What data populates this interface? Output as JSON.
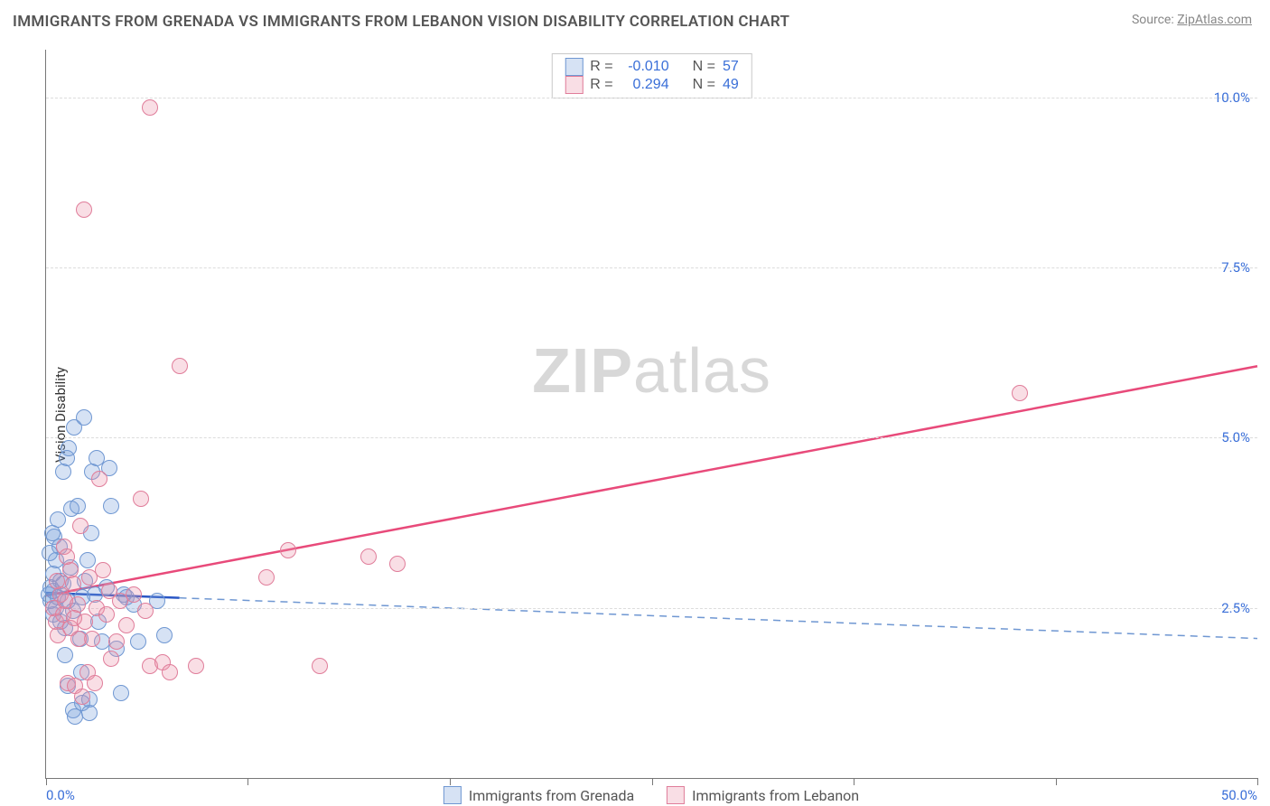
{
  "header": {
    "title": "IMMIGRANTS FROM GRENADA VS IMMIGRANTS FROM LEBANON VISION DISABILITY CORRELATION CHART",
    "source_prefix": "Source: ",
    "source_name": "ZipAtlas.com"
  },
  "watermark": {
    "zip": "ZIP",
    "atlas": "atlas"
  },
  "chart": {
    "type": "scatter",
    "ylabel": "Vision Disability",
    "xlim": [
      0,
      50
    ],
    "ylim": [
      0,
      10.7
    ],
    "xticks": [
      0,
      8.33,
      16.67,
      25,
      33.33,
      41.67,
      50
    ],
    "xtick_labels": {
      "0": "0.0%",
      "50": "50.0%"
    },
    "yticks": [
      2.5,
      5.0,
      7.5,
      10.0
    ],
    "ytick_labels": [
      "2.5%",
      "5.0%",
      "7.5%",
      "10.0%"
    ],
    "grid_dash_color": "#dcdcdc",
    "axis_color": "#777777",
    "tick_label_color": "#3a6fd8",
    "marker_radius": 9,
    "marker_border": 1.5,
    "series": [
      {
        "key": "grenada",
        "label": "Immigrants from Grenada",
        "fill": "rgba(120,160,220,0.30)",
        "stroke": "#6f97d2",
        "line_color": "#2a57c5",
        "line_dash_color": "#6f97d2",
        "line_solid_to_x": 5.5,
        "regression": {
          "x0": 0,
          "y0": 2.72,
          "x1": 50,
          "y1": 2.05
        },
        "legend_stats": {
          "R": "-0.010",
          "N": "57"
        },
        "points": [
          [
            0.1,
            2.7
          ],
          [
            0.2,
            2.6
          ],
          [
            0.2,
            2.8
          ],
          [
            0.3,
            2.75
          ],
          [
            0.3,
            3.0
          ],
          [
            0.3,
            2.4
          ],
          [
            0.4,
            2.5
          ],
          [
            0.4,
            3.2
          ],
          [
            0.5,
            2.65
          ],
          [
            0.5,
            3.8
          ],
          [
            0.6,
            2.3
          ],
          [
            0.6,
            2.9
          ],
          [
            0.7,
            2.85
          ],
          [
            0.7,
            4.5
          ],
          [
            0.8,
            2.2
          ],
          [
            0.8,
            1.8
          ],
          [
            0.85,
            4.7
          ],
          [
            0.9,
            2.6
          ],
          [
            0.9,
            1.35
          ],
          [
            0.95,
            4.85
          ],
          [
            1.0,
            3.1
          ],
          [
            1.05,
            3.95
          ],
          [
            1.1,
            2.45
          ],
          [
            1.1,
            1.0
          ],
          [
            1.15,
            5.15
          ],
          [
            1.2,
            0.9
          ],
          [
            1.3,
            4.0
          ],
          [
            1.4,
            2.05
          ],
          [
            1.45,
            1.55
          ],
          [
            1.5,
            2.65
          ],
          [
            1.5,
            1.1
          ],
          [
            1.55,
            5.3
          ],
          [
            1.6,
            2.9
          ],
          [
            1.7,
            3.2
          ],
          [
            1.8,
            1.15
          ],
          [
            1.8,
            0.95
          ],
          [
            1.85,
            3.6
          ],
          [
            1.9,
            4.5
          ],
          [
            2.0,
            2.7
          ],
          [
            2.1,
            4.7
          ],
          [
            2.15,
            2.3
          ],
          [
            2.3,
            2.0
          ],
          [
            2.5,
            2.8
          ],
          [
            2.6,
            4.55
          ],
          [
            2.7,
            4.0
          ],
          [
            2.9,
            1.9
          ],
          [
            3.1,
            1.25
          ],
          [
            3.2,
            2.7
          ],
          [
            3.3,
            2.65
          ],
          [
            3.6,
            2.55
          ],
          [
            3.8,
            2.0
          ],
          [
            4.6,
            2.6
          ],
          [
            4.9,
            2.1
          ],
          [
            0.35,
            3.55
          ],
          [
            0.55,
            3.4
          ],
          [
            0.15,
            3.3
          ],
          [
            0.25,
            3.6
          ]
        ]
      },
      {
        "key": "lebanon",
        "label": "Immigrants from Lebanon",
        "fill": "rgba(235,145,170,0.30)",
        "stroke": "#e07d9a",
        "line_color": "#e84a7a",
        "line_dash_color": "#e07d9a",
        "line_solid_to_x": 50,
        "regression": {
          "x0": 0,
          "y0": 2.68,
          "x1": 50,
          "y1": 6.05
        },
        "legend_stats": {
          "R": "0.294",
          "N": "49"
        },
        "points": [
          [
            0.3,
            2.5
          ],
          [
            0.4,
            2.3
          ],
          [
            0.5,
            2.1
          ],
          [
            0.6,
            2.7
          ],
          [
            0.7,
            2.4
          ],
          [
            0.75,
            3.4
          ],
          [
            0.8,
            2.6
          ],
          [
            0.9,
            1.4
          ],
          [
            1.0,
            2.2
          ],
          [
            1.0,
            3.05
          ],
          [
            1.1,
            2.85
          ],
          [
            1.2,
            1.35
          ],
          [
            1.3,
            2.55
          ],
          [
            1.4,
            3.7
          ],
          [
            1.5,
            1.2
          ],
          [
            1.55,
            8.35
          ],
          [
            1.6,
            2.3
          ],
          [
            1.7,
            1.55
          ],
          [
            1.8,
            2.95
          ],
          [
            1.9,
            2.05
          ],
          [
            2.0,
            1.4
          ],
          [
            2.1,
            2.5
          ],
          [
            2.2,
            4.4
          ],
          [
            2.35,
            3.05
          ],
          [
            2.5,
            2.4
          ],
          [
            2.6,
            2.75
          ],
          [
            2.7,
            1.75
          ],
          [
            2.9,
            2.0
          ],
          [
            3.05,
            2.6
          ],
          [
            3.3,
            2.25
          ],
          [
            3.6,
            2.7
          ],
          [
            3.9,
            4.1
          ],
          [
            4.1,
            2.45
          ],
          [
            4.3,
            1.65
          ],
          [
            4.3,
            9.85
          ],
          [
            4.8,
            1.7
          ],
          [
            5.1,
            1.55
          ],
          [
            5.5,
            6.05
          ],
          [
            6.2,
            1.65
          ],
          [
            9.1,
            2.95
          ],
          [
            10.0,
            3.35
          ],
          [
            11.3,
            1.65
          ],
          [
            13.3,
            3.25
          ],
          [
            14.5,
            3.15
          ],
          [
            40.2,
            5.65
          ],
          [
            0.45,
            2.9
          ],
          [
            0.85,
            3.25
          ],
          [
            1.15,
            2.35
          ],
          [
            1.35,
            2.05
          ]
        ]
      }
    ]
  },
  "legend_top": {
    "r_label": "R =",
    "n_label": "N ="
  }
}
